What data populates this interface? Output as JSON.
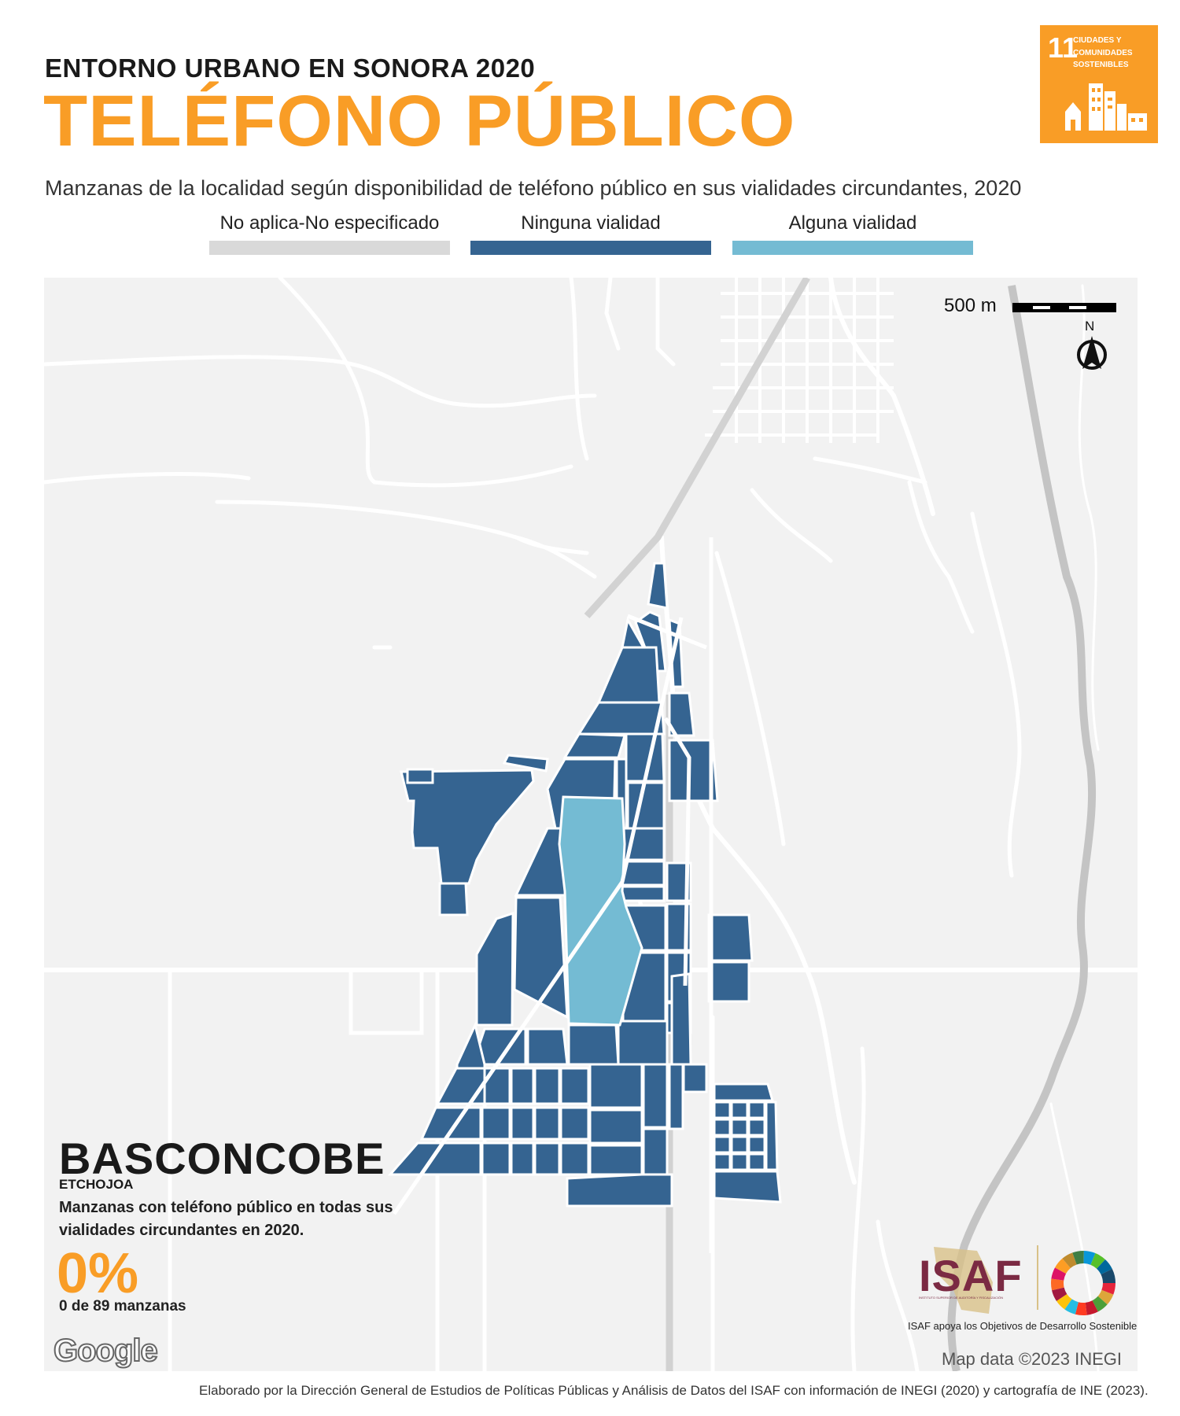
{
  "header": {
    "kicker": "ENTORNO URBANO EN SONORA 2020",
    "title": "TELÉFONO PÚBLICO",
    "subtitle": "Manzanas de la localidad según disponibilidad de teléfono público en sus vialidades circundantes, 2020"
  },
  "sdg": {
    "number": "11",
    "label_line1": "CIUDADES Y",
    "label_line2": "COMUNIDADES",
    "label_line3": "SOSTENIBLES",
    "color": "#F99D26"
  },
  "legend": [
    {
      "label": "No aplica-No especificado",
      "color": "#d9d9d9"
    },
    {
      "label": "Ninguna vialidad",
      "color": "#356491"
    },
    {
      "label": "Alguna vialidad",
      "color": "#74bbd3"
    }
  ],
  "map": {
    "scale_label": "500 m",
    "north_label": "N",
    "attribution": "Map data ©2023 INEGI",
    "google_label": "Google"
  },
  "summary": {
    "locality": "BASCONCOBE",
    "municipality": "ETCHOJOA",
    "indicator": "Manzanas con teléfono público en todas sus vialidades circundantes en 2020.",
    "percent": "0%",
    "count_text": "0 de 89 manzanas"
  },
  "isaf": {
    "logo_text": "ISAF",
    "logo_subtext": "INSTITUTO SUPERIOR DE AUDITORÍA Y FISCALIZACIÓN",
    "caption": "ISAF apoya los Objetivos de Desarrollo Sostenible"
  },
  "footer": {
    "credits": "Elaborado por la Dirección General de Estudios de Políticas Públicas y Análisis de Datos del ISAF con información de INEGI (2020) y cartografía de INE (2023)."
  }
}
